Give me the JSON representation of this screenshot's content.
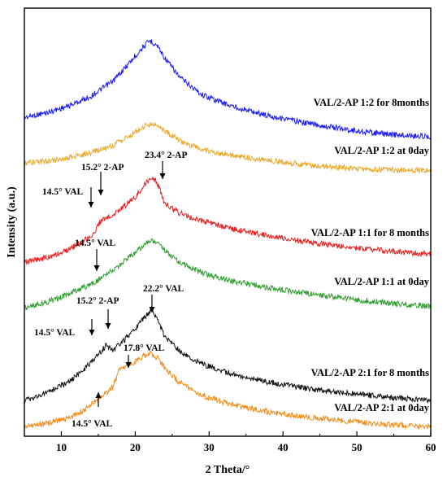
{
  "chart_data": {
    "type": "line",
    "title": "",
    "xlabel": "2 Theta/°",
    "ylabel": "Intensity (a.u.)",
    "xlim": [
      5,
      60
    ],
    "xticks": [
      10,
      20,
      30,
      40,
      50,
      60
    ],
    "y_ticks_shown": false,
    "grid": false,
    "legend": "none",
    "series": [
      {
        "name": "VAL/2-AP 1:2 for 8months",
        "color": "#1a1aff",
        "x": [
          5,
          8,
          11,
          14,
          17,
          19,
          21,
          22,
          23,
          24,
          26,
          29,
          33,
          38,
          44,
          50,
          55,
          60
        ],
        "y": [
          0.2,
          0.25,
          0.32,
          0.42,
          0.58,
          0.75,
          0.93,
          1.0,
          0.95,
          0.82,
          0.62,
          0.44,
          0.32,
          0.22,
          0.13,
          0.06,
          0.02,
          0.0
        ]
      },
      {
        "name": "VAL/2-AP 1:2 at 0day",
        "color": "#e8a82a",
        "x": [
          5,
          8,
          11,
          14,
          17,
          19,
          21,
          22,
          23,
          24,
          26,
          29,
          33,
          38,
          44,
          50,
          55,
          60
        ],
        "y": [
          0.16,
          0.2,
          0.28,
          0.38,
          0.54,
          0.72,
          0.92,
          1.0,
          0.96,
          0.84,
          0.64,
          0.46,
          0.33,
          0.22,
          0.12,
          0.05,
          0.02,
          0.0
        ]
      },
      {
        "name": "VAL/2-AP 1:1 for 8 months",
        "color": "#e82020",
        "x": [
          5,
          8,
          11,
          13,
          14.5,
          15.2,
          16,
          18,
          20,
          21,
          22,
          22.8,
          23.4,
          24,
          26,
          29,
          33,
          38,
          44,
          50,
          55,
          60
        ],
        "y": [
          0.0,
          0.05,
          0.14,
          0.24,
          0.33,
          0.45,
          0.5,
          0.6,
          0.74,
          0.85,
          0.96,
          0.92,
          0.82,
          0.66,
          0.56,
          0.47,
          0.38,
          0.3,
          0.22,
          0.16,
          0.12,
          0.09
        ]
      },
      {
        "name": "VAL/2-AP 1:1 at 0day",
        "color": "#2e9e2e",
        "x": [
          5,
          8,
          11,
          14,
          14.5,
          17,
          19,
          21,
          22,
          23,
          24,
          26,
          29,
          33,
          38,
          44,
          50,
          55,
          60
        ],
        "y": [
          0.0,
          0.08,
          0.2,
          0.35,
          0.38,
          0.56,
          0.74,
          0.92,
          1.0,
          0.97,
          0.86,
          0.68,
          0.52,
          0.4,
          0.3,
          0.2,
          0.12,
          0.06,
          0.02
        ]
      },
      {
        "name": "VAL/2-AP 2:1 for 8 months",
        "color": "#111111",
        "x": [
          5,
          8,
          11,
          13,
          14.5,
          15.2,
          16,
          17,
          18,
          20,
          21,
          22.2,
          23,
          24,
          26,
          29,
          33,
          38,
          44,
          50,
          55,
          60
        ],
        "y": [
          0.0,
          0.08,
          0.2,
          0.34,
          0.45,
          0.52,
          0.6,
          0.55,
          0.62,
          0.78,
          0.88,
          1.0,
          0.88,
          0.7,
          0.54,
          0.4,
          0.29,
          0.2,
          0.12,
          0.07,
          0.03,
          0.0
        ]
      },
      {
        "name": "VAL/2-AP 2:1 at 0day",
        "color": "#f28c1a",
        "x": [
          5,
          8,
          11,
          13,
          14.5,
          16,
          17,
          17.8,
          18.5,
          20,
          21,
          22,
          23,
          24,
          26,
          29,
          33,
          38,
          44,
          50,
          55,
          60
        ],
        "y": [
          0.0,
          0.04,
          0.12,
          0.22,
          0.34,
          0.46,
          0.54,
          0.76,
          0.82,
          0.88,
          0.95,
          1.0,
          0.94,
          0.8,
          0.6,
          0.43,
          0.3,
          0.2,
          0.12,
          0.06,
          0.02,
          0.0
        ]
      }
    ],
    "annotations": [
      {
        "text": "15.2°  2-AP",
        "x": 15.2,
        "series": "VAL/2-AP 1:1 for 8 months"
      },
      {
        "text": "23.4°  2-AP",
        "x": 23.4,
        "series": "VAL/2-AP 1:1 for 8 months"
      },
      {
        "text": "14.5°  VAL",
        "x": 14.5,
        "series": "VAL/2-AP 1:1 for 8 months"
      },
      {
        "text": "14.5°  VAL",
        "x": 14.5,
        "series": "VAL/2-AP 1:1 at 0day"
      },
      {
        "text": "15.2°  2-AP",
        "x": 15.2,
        "series": "VAL/2-AP 2:1 for 8 months"
      },
      {
        "text": "22.2°  VAL",
        "x": 22.2,
        "series": "VAL/2-AP 2:1 for 8 months"
      },
      {
        "text": "14.5°  VAL",
        "x": 14.5,
        "series": "VAL/2-AP 2:1 for 8 months"
      },
      {
        "text": "17.8°  VAL",
        "x": 17.8,
        "series": "VAL/2-AP 2:1 at 0day"
      },
      {
        "text": "14.5°  VAL",
        "x": 14.5,
        "series": "VAL/2-AP 2:1 at 0day"
      }
    ]
  }
}
